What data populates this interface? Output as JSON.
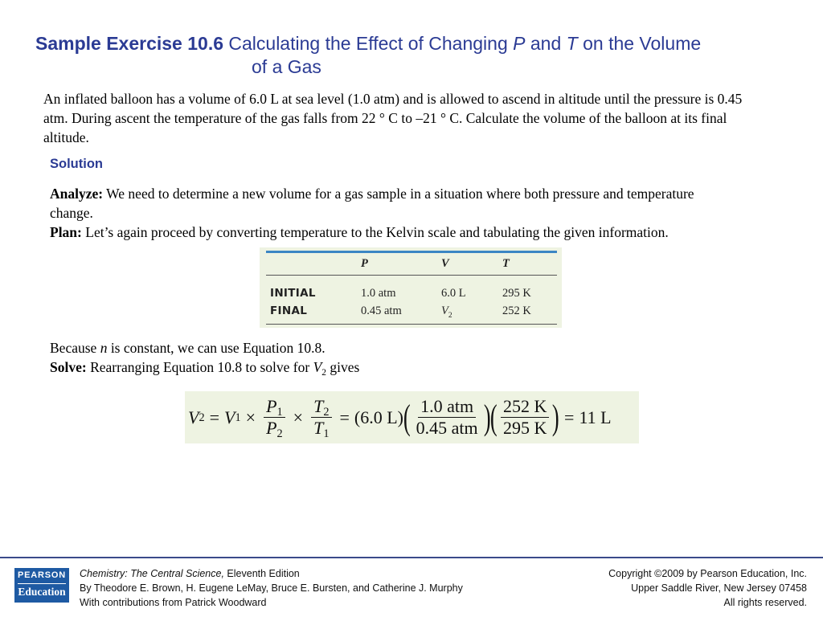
{
  "title": {
    "label": "Sample Exercise 10.6",
    "text_a": "Calculating the Effect of Changing",
    "var_p": "P",
    "and": "and",
    "var_t": "T",
    "text_b": "on the Volume",
    "line2": "of a Gas"
  },
  "problem": "An inflated balloon has a volume of 6.0 L at sea level (1.0 atm) and is allowed to ascend in altitude until the pressure is 0.45 atm. During ascent the temperature of the gas falls from 22 ° C to –21 ° C. Calculate the volume of the balloon at its final altitude.",
  "solution": {
    "heading": "Solution",
    "analyze_label": "Analyze:",
    "analyze_text": "We need to determine a new volume for a gas sample in a situation where both pressure and temperature change.",
    "plan_label": "Plan:",
    "plan_text": "Let’s again proceed by converting temperature to the Kelvin scale and tabulating the given information."
  },
  "table": {
    "headers": [
      "P",
      "V",
      "T"
    ],
    "rows": [
      {
        "label": "INITIAL",
        "p": "1.0 atm",
        "v": "6.0 L",
        "t": "295 K"
      },
      {
        "label": "FINAL",
        "p": "0.45 atm",
        "v_var": "V",
        "v_sub": "2",
        "t": "252 K"
      }
    ]
  },
  "because": {
    "a": "Because",
    "n": "n",
    "b": "is constant, we can use Equation 10.8.",
    "solve_label": "Solve:",
    "solve_text": "Rearranging Equation 10.8 to solve for",
    "v": "V",
    "v_sub": "2",
    "gives": "gives"
  },
  "equation": {
    "lhs_var": "V",
    "lhs_sub": "2",
    "eq1": "=",
    "v1": "V",
    "v1_sub": "1",
    "times1": "×",
    "p_num": "P",
    "p_num_sub": "1",
    "p_den": "P",
    "p_den_sub": "2",
    "times2": "×",
    "t_num": "T",
    "t_num_sub": "2",
    "t_den": "T",
    "t_den_sub": "1",
    "eq2": "=",
    "vol": "(6.0 L)",
    "f1_num": "1.0 atm",
    "f1_den": "0.45 atm",
    "f2_num": "252 K",
    "f2_den": "295 K",
    "eq3": "=",
    "result": "11 L"
  },
  "footer": {
    "logo_top": "PEARSON",
    "logo_bottom": "Education",
    "book_title": "Chemistry: The Central Science,",
    "edition": "Eleventh Edition",
    "authors": "By Theodore E. Brown, H. Eugene LeMay, Bruce E. Bursten, and Catherine J. Murphy",
    "contrib": "With contributions from Patrick Woodward",
    "copyright": "Copyright ©2009 by Pearson Education, Inc.",
    "location": "Upper Saddle River, New Jersey 07458",
    "rights": "All rights reserved."
  },
  "colors": {
    "title": "#2b3b94",
    "table_bg": "#eef3e2",
    "table_rule": "#3b86c4",
    "logo_bg": "#1e5aa3"
  }
}
